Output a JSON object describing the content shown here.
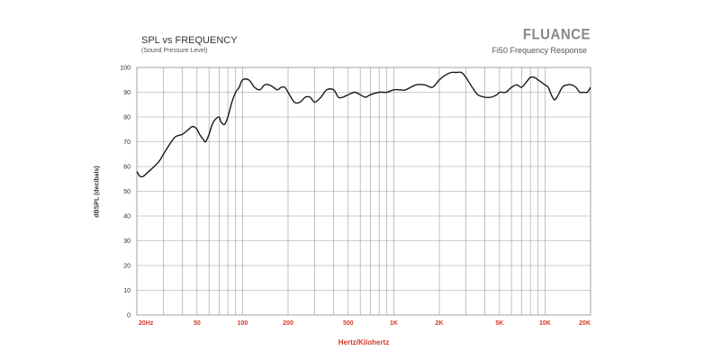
{
  "header": {
    "title": "SPL vs FREQUENCY",
    "subtitle": "(Sound Pressure Level)",
    "brand": "FLUANCE",
    "brand_subtitle": "Fi50 Frequency Response"
  },
  "colors": {
    "grid": "#999999",
    "curve": "#1a1a1a",
    "x_tick_labels": "#d23a2a",
    "x_axis_title": "#d23a2a",
    "y_tick_labels": "#333333"
  },
  "chart_data": {
    "type": "line",
    "title": "SPL vs FREQUENCY",
    "subtitle": "(Sound Pressure Level)",
    "xlabel": "Hertz/Kilohertz",
    "ylabel": "dBSPL (decibals)",
    "xscale": "log",
    "xlim": [
      20,
      20000
    ],
    "ylim": [
      0,
      100
    ],
    "grid": true,
    "x_ticks": [
      {
        "value": 20,
        "label": "20Hz"
      },
      {
        "value": 50,
        "label": "50"
      },
      {
        "value": 100,
        "label": "100"
      },
      {
        "value": 200,
        "label": "200"
      },
      {
        "value": 500,
        "label": "500"
      },
      {
        "value": 1000,
        "label": "1K"
      },
      {
        "value": 2000,
        "label": "2K"
      },
      {
        "value": 5000,
        "label": "5K"
      },
      {
        "value": 10000,
        "label": "10K"
      },
      {
        "value": 20000,
        "label": "20K"
      }
    ],
    "y_ticks": [
      0,
      10,
      20,
      30,
      40,
      50,
      60,
      70,
      80,
      90,
      100
    ],
    "series": [
      {
        "name": "",
        "x": [
          20,
          21,
          22,
          23,
          25,
          28,
          30,
          33,
          36,
          40,
          44,
          46,
          48,
          50,
          52,
          55,
          57,
          60,
          63,
          66,
          70,
          72,
          76,
          80,
          85,
          90,
          95,
          100,
          110,
          120,
          130,
          140,
          150,
          160,
          170,
          180,
          190,
          200,
          220,
          240,
          260,
          280,
          300,
          330,
          360,
          400,
          430,
          460,
          500,
          550,
          600,
          650,
          700,
          800,
          900,
          1000,
          1100,
          1200,
          1400,
          1600,
          1800,
          2000,
          2200,
          2400,
          2600,
          2800,
          3000,
          3300,
          3600,
          4000,
          4400,
          4800,
          5000,
          5500,
          6000,
          6500,
          7000,
          7500,
          8000,
          8500,
          9000,
          10000,
          10500,
          11000,
          11500,
          12000,
          13000,
          14000,
          15000,
          16000,
          17000,
          18000,
          19000,
          20000
        ],
        "y": [
          58,
          56,
          56,
          57,
          59,
          62,
          65,
          69,
          72,
          73,
          75,
          76,
          76,
          75,
          73,
          71,
          70,
          73,
          77,
          79,
          80,
          78,
          77,
          80,
          86,
          90,
          92,
          95,
          95,
          92,
          91,
          93,
          93,
          92,
          91,
          92,
          92,
          90,
          86,
          86,
          88,
          88,
          86,
          88,
          91,
          91,
          88,
          88,
          89,
          90,
          89,
          88,
          89,
          90,
          90,
          91,
          91,
          91,
          93,
          93,
          92,
          95,
          97,
          98,
          98,
          98,
          96,
          92,
          89,
          88,
          88,
          89,
          90,
          90,
          92,
          93,
          92,
          94,
          96,
          96,
          95,
          93,
          92,
          89,
          87,
          88,
          92,
          93,
          93,
          92,
          90,
          90,
          90,
          92
        ]
      }
    ]
  }
}
